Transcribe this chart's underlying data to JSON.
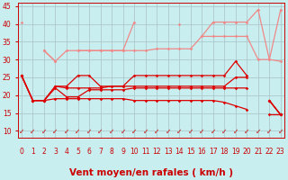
{
  "xlabel": "Vent moyen/en rafales ( km/h )",
  "x": [
    0,
    1,
    2,
    3,
    4,
    5,
    6,
    7,
    8,
    9,
    10,
    11,
    12,
    13,
    14,
    15,
    16,
    17,
    18,
    19,
    20,
    21,
    22,
    23
  ],
  "salmon1": [
    40.5,
    null,
    32.5,
    29.5,
    null,
    32.5,
    32.5,
    32.5,
    32.5,
    32.5,
    40.5,
    null,
    null,
    null,
    40.0,
    null,
    36.5,
    40.5,
    40.5,
    40.5,
    40.5,
    44.0,
    30.0,
    44.0
  ],
  "salmon2": [
    null,
    null,
    32.5,
    29.5,
    32.5,
    32.5,
    32.5,
    32.5,
    32.5,
    32.5,
    32.5,
    32.5,
    33.0,
    33.0,
    33.0,
    33.0,
    36.5,
    36.5,
    36.5,
    36.5,
    36.5,
    30.0,
    30.0,
    29.5
  ],
  "red1": [
    25.5,
    18.5,
    18.5,
    22.5,
    22.5,
    25.5,
    25.5,
    22.5,
    22.5,
    22.5,
    25.5,
    25.5,
    25.5,
    25.5,
    25.5,
    25.5,
    25.5,
    25.5,
    25.5,
    29.5,
    25.5,
    null,
    18.5,
    14.5
  ],
  "red2": [
    25.5,
    18.5,
    18.5,
    22.5,
    22.0,
    22.0,
    22.0,
    22.0,
    22.5,
    22.5,
    22.5,
    22.5,
    22.5,
    22.5,
    22.5,
    22.5,
    22.5,
    22.5,
    22.5,
    25.0,
    25.0,
    null,
    18.5,
    14.5
  ],
  "red3": [
    25.5,
    18.5,
    18.5,
    22.0,
    19.5,
    19.5,
    21.5,
    21.5,
    21.5,
    21.5,
    22.0,
    22.0,
    22.0,
    22.0,
    22.0,
    22.0,
    22.0,
    22.0,
    22.0,
    22.0,
    22.0,
    null,
    18.5,
    14.5
  ],
  "red4": [
    25.5,
    18.5,
    18.5,
    19.0,
    19.0,
    19.0,
    19.0,
    19.0,
    19.0,
    19.0,
    18.5,
    18.5,
    18.5,
    18.5,
    18.5,
    18.5,
    18.5,
    18.5,
    18.0,
    17.0,
    16.0,
    null,
    14.5,
    14.5
  ],
  "ylim": [
    8,
    46
  ],
  "yticks": [
    10,
    15,
    20,
    25,
    30,
    35,
    40,
    45
  ],
  "xlim": [
    -0.3,
    23.3
  ],
  "xticks": [
    0,
    1,
    2,
    3,
    4,
    5,
    6,
    7,
    8,
    9,
    10,
    11,
    12,
    13,
    14,
    15,
    16,
    17,
    18,
    19,
    20,
    21,
    22,
    23
  ],
  "bg_color": "#c8eef0",
  "grid_color": "#b0c8ca",
  "salmon_color": "#f08888",
  "red_color": "#dd0000",
  "tick_color": "#cc0000",
  "label_color": "#cc0000",
  "tick_fontsize": 5.5,
  "xlabel_fontsize": 7.5
}
